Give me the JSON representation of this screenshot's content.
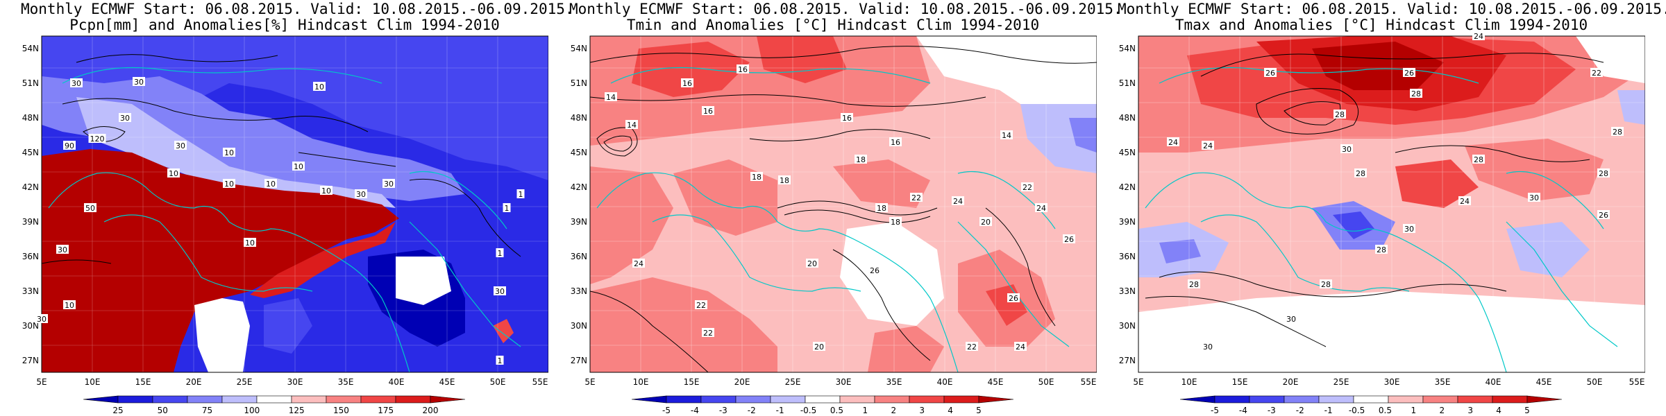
{
  "panels": [
    {
      "id": "pcpn",
      "title_line1": "Monthly ECMWF Start: 06.08.2015. Valid: 10.08.2015.-06.09.2015.",
      "title_line2": "Pcpn[mm] and Anomalies[%] Hindcast Clim 1994-2010",
      "colorbar": {
        "colors": [
          "#0000b4",
          "#1c1cdc",
          "#4646f0",
          "#8282f8",
          "#bebefc",
          "#ffffff",
          "#fcbebe",
          "#f88282",
          "#f04646",
          "#dc1c1c",
          "#b40000"
        ],
        "ticks": [
          "25",
          "50",
          "75",
          "100",
          "125",
          "150",
          "175",
          "200"
        ]
      },
      "contour_labels": [
        "30",
        "30",
        "10",
        "30",
        "90",
        "120",
        "30",
        "10",
        "10",
        "10",
        "10",
        "10",
        "10",
        "30",
        "30",
        "1",
        "1",
        "10",
        "1",
        "30",
        "50",
        "30",
        "10",
        "30",
        "1"
      ]
    },
    {
      "id": "tmin",
      "title_line1": "Monthly ECMWF Start: 06.08.2015. Valid: 10.08.2015.-06.09.2015.",
      "title_line2": "Tmin and Anomalies [°C] Hindcast Clim 1994-2010",
      "colorbar": {
        "colors": [
          "#0000b4",
          "#1c1cdc",
          "#4646f0",
          "#8282f8",
          "#bebefc",
          "#ffffff",
          "#fcbebe",
          "#f88282",
          "#f04646",
          "#dc1c1c",
          "#b40000"
        ],
        "ticks": [
          "-5",
          "-4",
          "-3",
          "-2",
          "-1",
          "-0.5",
          "0.5",
          "1",
          "2",
          "3",
          "4",
          "5"
        ]
      },
      "contour_labels": [
        "14",
        "16",
        "16",
        "14",
        "16",
        "16",
        "18",
        "16",
        "14",
        "18",
        "18",
        "18",
        "22",
        "24",
        "18",
        "20",
        "24",
        "22",
        "20",
        "26",
        "24",
        "22",
        "22",
        "26",
        "22",
        "24",
        "20",
        "26"
      ]
    },
    {
      "id": "tmax",
      "title_line1": "Monthly ECMWF Start: 06.08.2015. Valid: 10.08.2015.-06.09.2015.",
      "title_line2": "Tmax and Anomalies [°C] Hindcast Clim 1994-2010",
      "colorbar": {
        "colors": [
          "#0000b4",
          "#1c1cdc",
          "#4646f0",
          "#8282f8",
          "#bebefc",
          "#ffffff",
          "#fcbebe",
          "#f88282",
          "#f04646",
          "#dc1c1c",
          "#b40000"
        ],
        "ticks": [
          "-5",
          "-4",
          "-3",
          "-2",
          "-1",
          "-0.5",
          "0.5",
          "1",
          "2",
          "3",
          "4",
          "5"
        ]
      },
      "contour_labels": [
        "24",
        "26",
        "26",
        "22",
        "28",
        "28",
        "24",
        "28",
        "24",
        "30",
        "28",
        "28",
        "28",
        "24",
        "30",
        "30",
        "28",
        "28",
        "28",
        "30",
        "30",
        "26"
      ]
    }
  ],
  "map": {
    "lat_labels": [
      "54N",
      "51N",
      "48N",
      "45N",
      "42N",
      "39N",
      "36N",
      "33N",
      "30N",
      "27N"
    ],
    "lon_labels": [
      "5E",
      "10E",
      "15E",
      "20E",
      "25E",
      "30E",
      "35E",
      "40E",
      "45E",
      "50E",
      "55E"
    ]
  }
}
